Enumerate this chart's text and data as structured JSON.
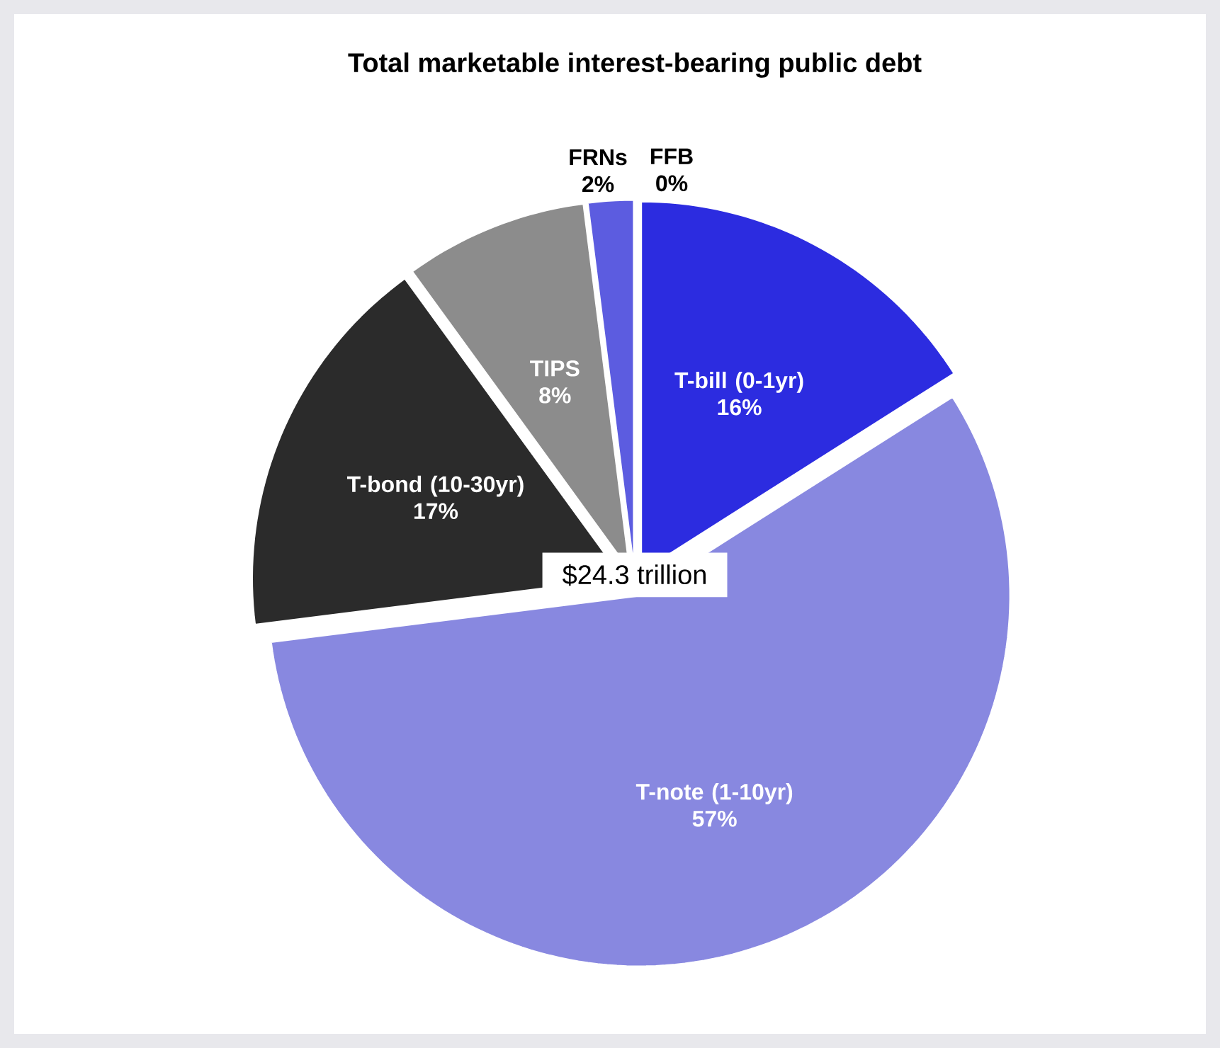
{
  "chart_data": {
    "type": "pie",
    "title": "Total marketable interest-bearing public debt",
    "categories": [
      "T-bill (0-1yr)",
      "T-note (1-10yr)",
      "T-bond (10-30yr)",
      "TIPS",
      "FRNs",
      "FFB"
    ],
    "values": [
      16,
      57,
      17,
      8,
      2,
      0
    ],
    "value_labels": [
      "16%",
      "57%",
      "17%",
      "8%",
      "2%",
      "0%"
    ],
    "colors": [
      "#2c2ce0",
      "#8888e0",
      "#2b2b2b",
      "#8c8c8c",
      "#5c5ce0",
      "#dcdcf5"
    ],
    "annotations": [
      "$24.3 trillion"
    ]
  }
}
